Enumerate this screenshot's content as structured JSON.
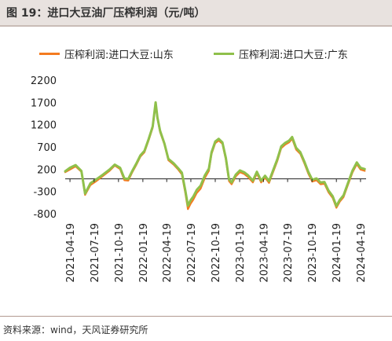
{
  "header": {
    "title": "图 19：进口大豆油厂压榨利润（元/吨）"
  },
  "source": "资料来源：wind，天风证券研究所",
  "colors": {
    "shandong": "#f47b20",
    "guangdong": "#8fc04b",
    "zero_line": "#222222",
    "header_bg": "#e8e2df"
  },
  "chart_data": {
    "type": "line",
    "title": "",
    "xlabel": "",
    "ylabel": "",
    "ylim": [
      -800,
      2200
    ],
    "yticks": [
      2200,
      1700,
      1200,
      700,
      200,
      -300,
      -800
    ],
    "xlim": [
      "2021-04-01",
      "2024-05-10"
    ],
    "xticks": [
      "2021-04-19",
      "2021-07-19",
      "2021-10-19",
      "2022-01-19",
      "2022-04-19",
      "2022-07-19",
      "2022-10-19",
      "2023-01-19",
      "2023-04-19",
      "2023-07-19",
      "2023-10-19",
      "2024-01-19",
      "2024-04-19"
    ],
    "grid": false,
    "legend_position": "top",
    "series": [
      {
        "name": "压榨利润:进口大豆:山东",
        "color": "#f47b20",
        "points": [
          [
            "2021-04-01",
            150
          ],
          [
            "2021-04-19",
            210
          ],
          [
            "2021-05-10",
            280
          ],
          [
            "2021-06-01",
            160
          ],
          [
            "2021-06-15",
            -360
          ],
          [
            "2021-07-05",
            -140
          ],
          [
            "2021-07-25",
            -60
          ],
          [
            "2021-08-20",
            60
          ],
          [
            "2021-09-15",
            180
          ],
          [
            "2021-10-05",
            300
          ],
          [
            "2021-10-25",
            220
          ],
          [
            "2021-11-10",
            -30
          ],
          [
            "2021-11-25",
            -40
          ],
          [
            "2021-12-10",
            150
          ],
          [
            "2021-12-25",
            310
          ],
          [
            "2022-01-10",
            500
          ],
          [
            "2022-01-25",
            600
          ],
          [
            "2022-02-10",
            870
          ],
          [
            "2022-02-25",
            1150
          ],
          [
            "2022-03-08",
            1700
          ],
          [
            "2022-03-15",
            1350
          ],
          [
            "2022-03-25",
            1050
          ],
          [
            "2022-04-10",
            780
          ],
          [
            "2022-04-25",
            420
          ],
          [
            "2022-05-15",
            320
          ],
          [
            "2022-06-01",
            210
          ],
          [
            "2022-06-15",
            100
          ],
          [
            "2022-06-28",
            -320
          ],
          [
            "2022-07-08",
            -680
          ],
          [
            "2022-07-18",
            -560
          ],
          [
            "2022-07-28",
            -470
          ],
          [
            "2022-08-10",
            -320
          ],
          [
            "2022-08-25",
            -220
          ],
          [
            "2022-09-10",
            20
          ],
          [
            "2022-09-25",
            180
          ],
          [
            "2022-10-05",
            560
          ],
          [
            "2022-10-19",
            800
          ],
          [
            "2022-11-01",
            860
          ],
          [
            "2022-11-15",
            790
          ],
          [
            "2022-11-28",
            430
          ],
          [
            "2022-12-10",
            -50
          ],
          [
            "2022-12-20",
            -120
          ],
          [
            "2023-01-05",
            60
          ],
          [
            "2023-01-20",
            150
          ],
          [
            "2023-02-05",
            110
          ],
          [
            "2023-02-20",
            40
          ],
          [
            "2023-03-10",
            -80
          ],
          [
            "2023-03-25",
            120
          ],
          [
            "2023-04-10",
            -80
          ],
          [
            "2023-04-25",
            30
          ],
          [
            "2023-05-10",
            -90
          ],
          [
            "2023-05-25",
            150
          ],
          [
            "2023-06-10",
            400
          ],
          [
            "2023-06-25",
            690
          ],
          [
            "2023-07-10",
            770
          ],
          [
            "2023-07-25",
            820
          ],
          [
            "2023-08-05",
            900
          ],
          [
            "2023-08-20",
            660
          ],
          [
            "2023-09-05",
            560
          ],
          [
            "2023-09-20",
            350
          ],
          [
            "2023-10-05",
            120
          ],
          [
            "2023-10-20",
            -60
          ],
          [
            "2023-11-05",
            -30
          ],
          [
            "2023-11-20",
            -120
          ],
          [
            "2023-12-05",
            -110
          ],
          [
            "2023-12-20",
            -300
          ],
          [
            "2024-01-05",
            -430
          ],
          [
            "2024-01-19",
            -650
          ],
          [
            "2024-02-01",
            -510
          ],
          [
            "2024-02-15",
            -410
          ],
          [
            "2024-03-01",
            -160
          ],
          [
            "2024-03-20",
            150
          ],
          [
            "2024-04-05",
            330
          ],
          [
            "2024-04-19",
            210
          ],
          [
            "2024-05-05",
            180
          ]
        ]
      },
      {
        "name": "压榨利润:进口大豆:广东",
        "color": "#8fc04b",
        "points": [
          [
            "2021-04-01",
            170
          ],
          [
            "2021-04-19",
            250
          ],
          [
            "2021-05-10",
            310
          ],
          [
            "2021-06-01",
            180
          ],
          [
            "2021-06-15",
            -330
          ],
          [
            "2021-07-05",
            -100
          ],
          [
            "2021-07-25",
            -20
          ],
          [
            "2021-08-20",
            90
          ],
          [
            "2021-09-15",
            210
          ],
          [
            "2021-10-05",
            320
          ],
          [
            "2021-10-25",
            250
          ],
          [
            "2021-11-10",
            10
          ],
          [
            "2021-11-25",
            0
          ],
          [
            "2021-12-10",
            180
          ],
          [
            "2021-12-25",
            340
          ],
          [
            "2022-01-10",
            530
          ],
          [
            "2022-01-25",
            630
          ],
          [
            "2022-02-10",
            900
          ],
          [
            "2022-02-25",
            1180
          ],
          [
            "2022-03-08",
            1720
          ],
          [
            "2022-03-15",
            1380
          ],
          [
            "2022-03-25",
            1080
          ],
          [
            "2022-04-10",
            800
          ],
          [
            "2022-04-25",
            450
          ],
          [
            "2022-05-15",
            350
          ],
          [
            "2022-06-01",
            240
          ],
          [
            "2022-06-15",
            140
          ],
          [
            "2022-06-28",
            -260
          ],
          [
            "2022-07-08",
            -600
          ],
          [
            "2022-07-18",
            -480
          ],
          [
            "2022-07-28",
            -400
          ],
          [
            "2022-08-10",
            -250
          ],
          [
            "2022-08-25",
            -150
          ],
          [
            "2022-09-10",
            80
          ],
          [
            "2022-09-25",
            230
          ],
          [
            "2022-10-05",
            600
          ],
          [
            "2022-10-19",
            840
          ],
          [
            "2022-11-01",
            900
          ],
          [
            "2022-11-15",
            820
          ],
          [
            "2022-11-28",
            470
          ],
          [
            "2022-12-10",
            -10
          ],
          [
            "2022-12-20",
            -80
          ],
          [
            "2023-01-05",
            100
          ],
          [
            "2023-01-20",
            190
          ],
          [
            "2023-02-05",
            150
          ],
          [
            "2023-02-20",
            80
          ],
          [
            "2023-03-10",
            -40
          ],
          [
            "2023-03-25",
            160
          ],
          [
            "2023-04-10",
            -40
          ],
          [
            "2023-04-25",
            70
          ],
          [
            "2023-05-10",
            -50
          ],
          [
            "2023-05-25",
            190
          ],
          [
            "2023-06-10",
            440
          ],
          [
            "2023-06-25",
            730
          ],
          [
            "2023-07-10",
            810
          ],
          [
            "2023-07-25",
            860
          ],
          [
            "2023-08-05",
            940
          ],
          [
            "2023-08-20",
            700
          ],
          [
            "2023-09-05",
            600
          ],
          [
            "2023-09-20",
            390
          ],
          [
            "2023-10-05",
            160
          ],
          [
            "2023-10-20",
            -20
          ],
          [
            "2023-11-05",
            10
          ],
          [
            "2023-11-20",
            -80
          ],
          [
            "2023-12-05",
            -70
          ],
          [
            "2023-12-20",
            -260
          ],
          [
            "2024-01-05",
            -390
          ],
          [
            "2024-01-19",
            -610
          ],
          [
            "2024-02-01",
            -470
          ],
          [
            "2024-02-15",
            -370
          ],
          [
            "2024-03-01",
            -120
          ],
          [
            "2024-03-20",
            190
          ],
          [
            "2024-04-05",
            370
          ],
          [
            "2024-04-19",
            250
          ],
          [
            "2024-05-05",
            220
          ]
        ]
      }
    ]
  }
}
